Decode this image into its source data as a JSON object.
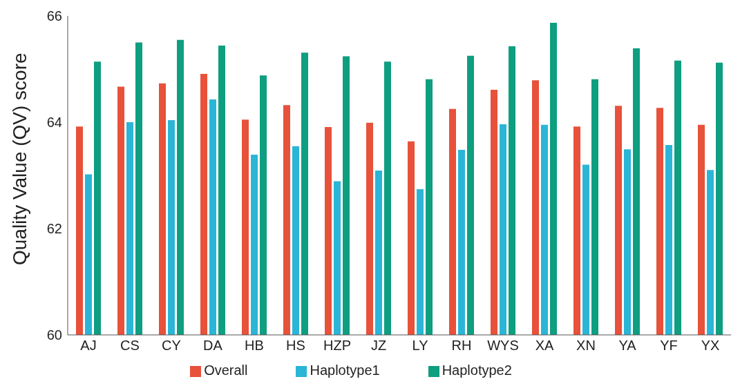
{
  "chart_data": {
    "type": "bar",
    "ylabel": "Quality Value (QV) score",
    "categories": [
      "AJ",
      "CS",
      "CY",
      "DA",
      "HB",
      "HS",
      "HZP",
      "JZ",
      "LY",
      "RH",
      "WYS",
      "XA",
      "XN",
      "YA",
      "YF",
      "YX"
    ],
    "series": [
      {
        "name": "Overall",
        "color": "#e8513a",
        "values": [
          63.92,
          64.67,
          64.73,
          64.91,
          64.05,
          64.32,
          63.91,
          63.99,
          63.64,
          64.25,
          64.61,
          64.79,
          63.92,
          64.31,
          64.27,
          63.95
        ]
      },
      {
        "name": "Haplotype1",
        "color": "#2bb5d6",
        "values": [
          63.02,
          64.0,
          64.04,
          64.43,
          63.39,
          63.55,
          62.89,
          63.09,
          62.74,
          63.48,
          63.96,
          63.95,
          63.2,
          63.49,
          63.57,
          63.1
        ]
      },
      {
        "name": "Haplotype2",
        "color": "#0e9e80",
        "values": [
          65.14,
          65.5,
          65.55,
          65.44,
          64.88,
          65.31,
          65.24,
          65.14,
          64.81,
          65.25,
          65.43,
          65.87,
          64.81,
          65.39,
          65.16,
          65.12
        ]
      }
    ],
    "ylim": [
      60,
      66
    ],
    "yticks": [
      60,
      62,
      64,
      66
    ],
    "grid": false,
    "legend": "bottom"
  }
}
